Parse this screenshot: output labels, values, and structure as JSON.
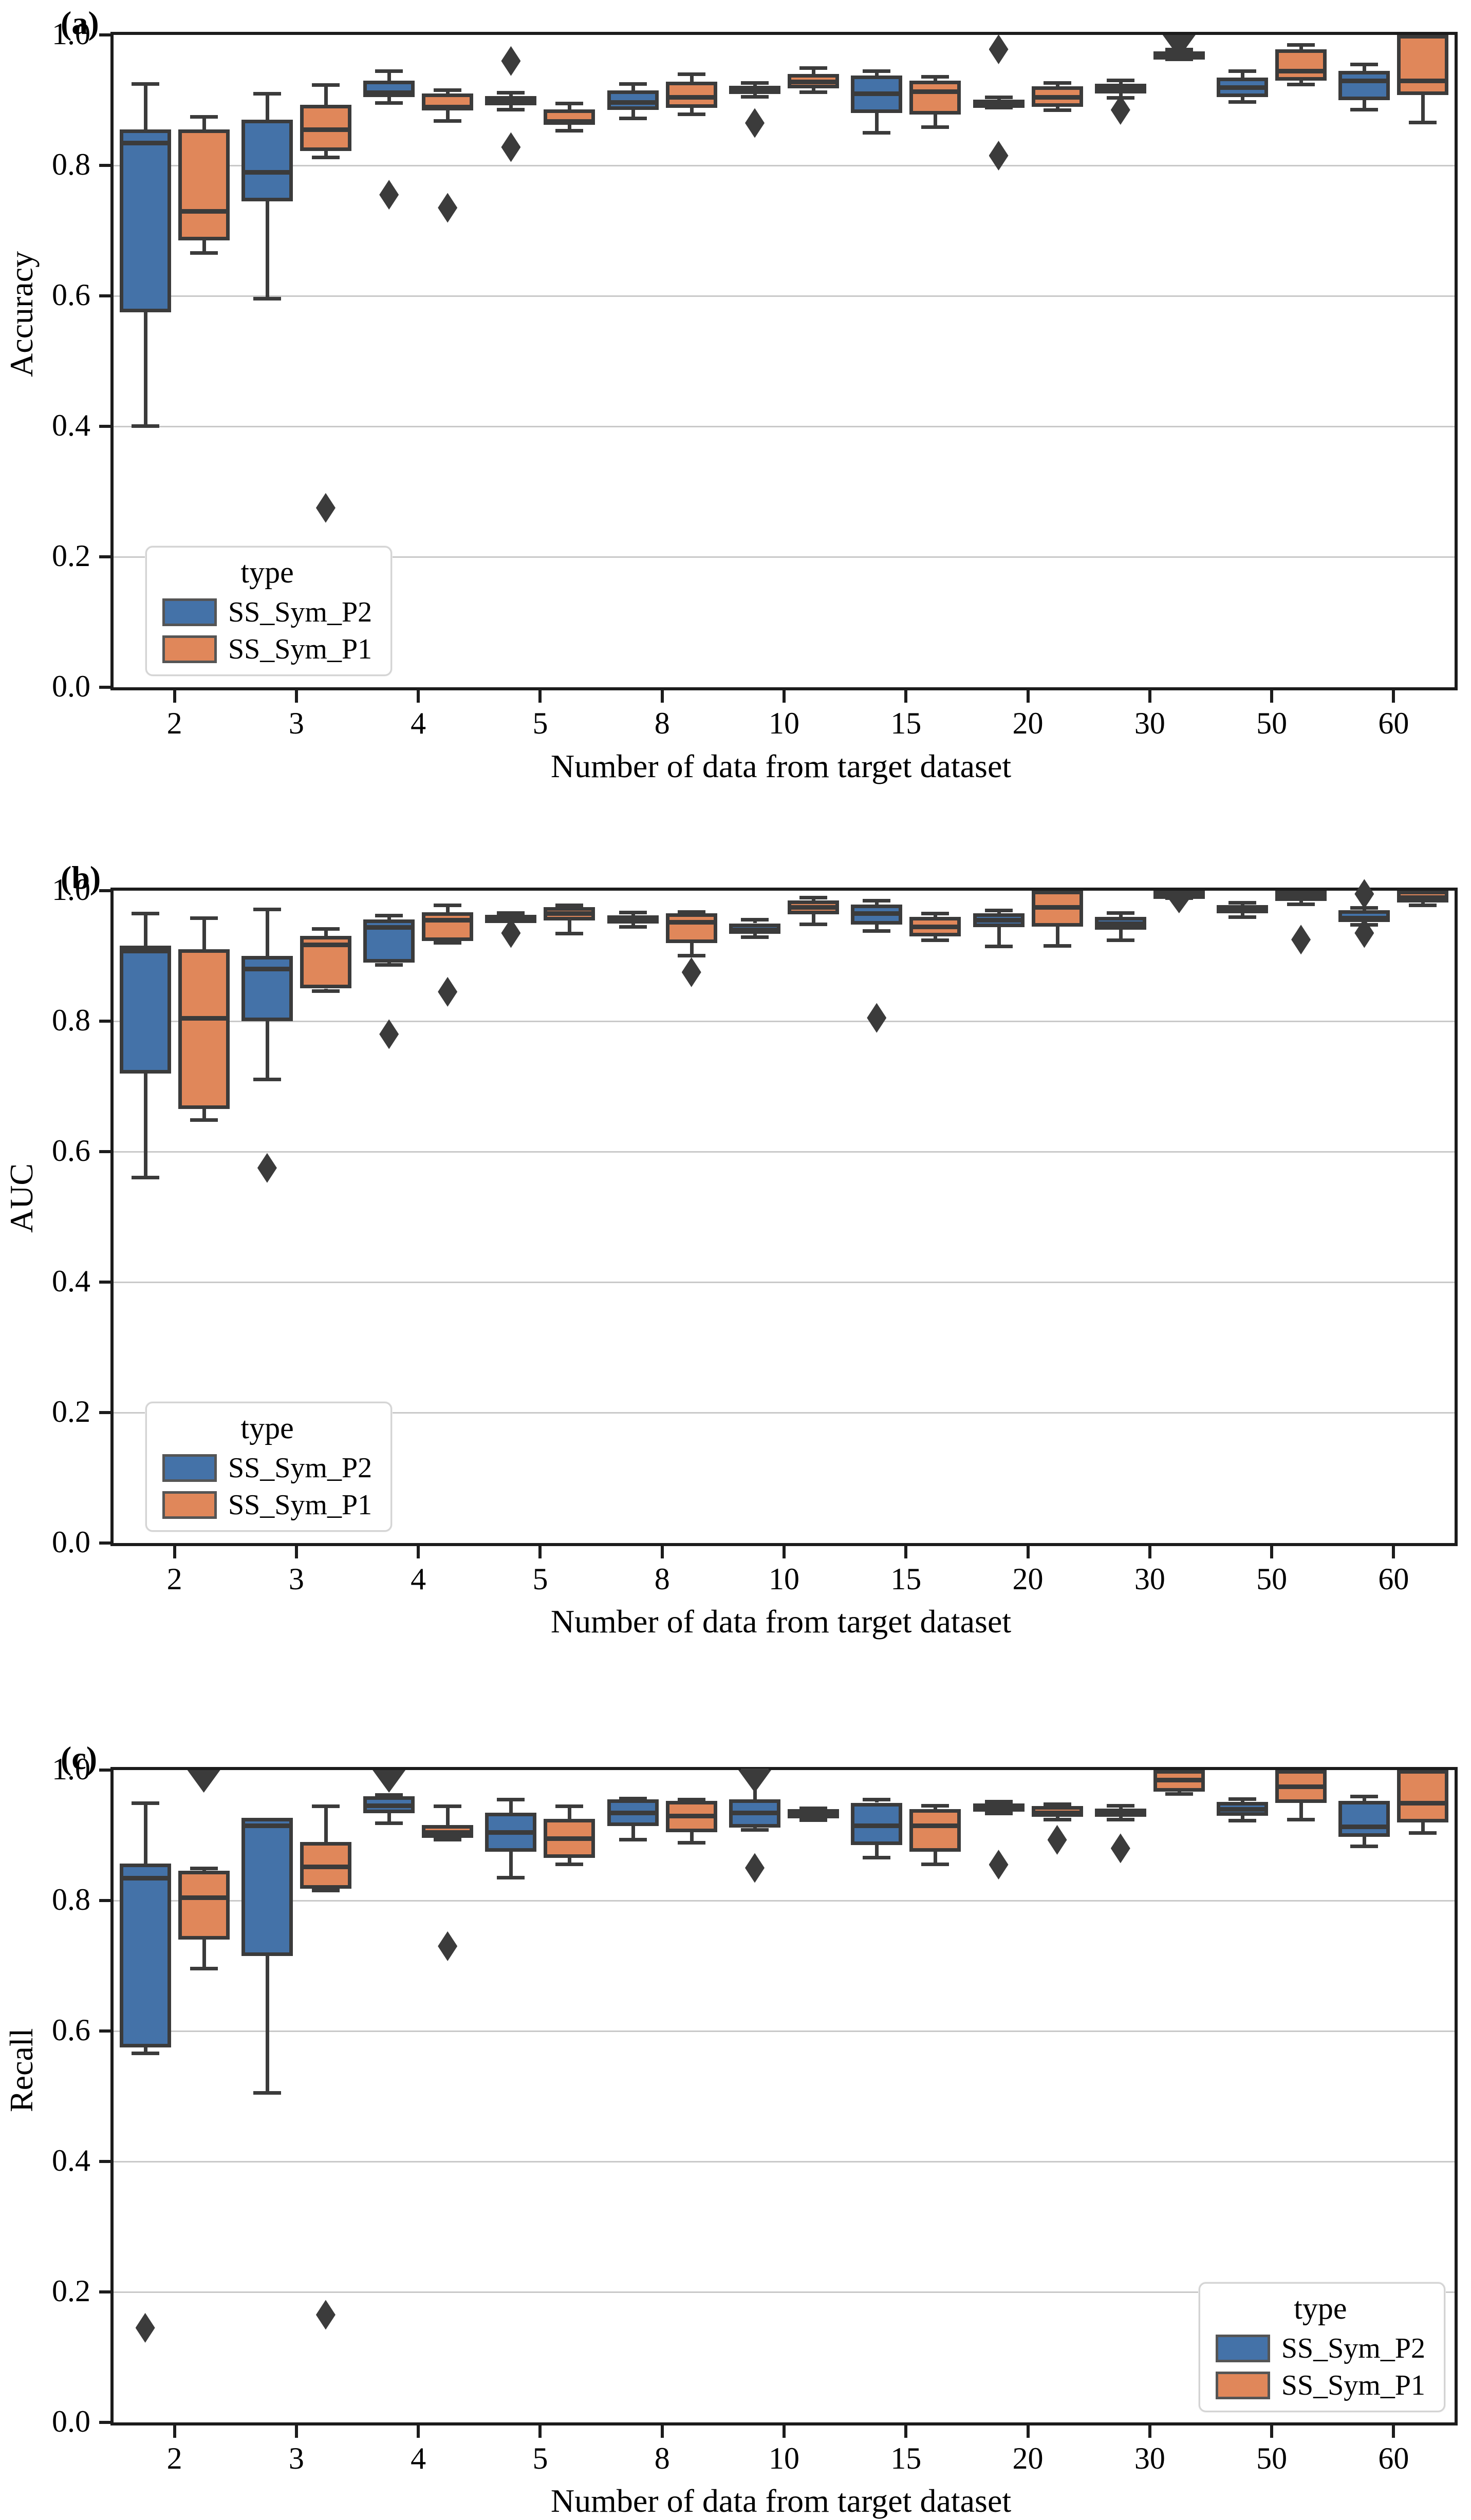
{
  "figure": {
    "xlabel": "Number of data from target dataset",
    "yticks": [
      "0.0",
      "0.2",
      "0.4",
      "0.6",
      "0.8",
      "1.0"
    ],
    "ytick_values": [
      0.0,
      0.2,
      0.4,
      0.6,
      0.8,
      1.0
    ],
    "gridline_values": [
      0.2,
      0.4,
      0.6,
      0.8
    ],
    "categories": [
      "2",
      "3",
      "4",
      "5",
      "8",
      "10",
      "15",
      "20",
      "30",
      "50",
      "60"
    ],
    "colors": {
      "blue": "#4472a8",
      "orange": "#e0875a",
      "edge": "#3b3b3b",
      "grid": "#c9c9c9",
      "spine": "#1c1c1c"
    },
    "legend": {
      "title": "type",
      "items": [
        {
          "label": "SS_Sym_P2",
          "color_key": "blue"
        },
        {
          "label": "SS_Sym_P1",
          "color_key": "orange"
        }
      ]
    }
  },
  "chart_data": [
    {
      "type": "box",
      "tag": "(a)",
      "ylabel": "Accuracy",
      "ylim": [
        0.0,
        1.0
      ],
      "legend_position": "lower-left",
      "categories": [
        "2",
        "3",
        "4",
        "5",
        "8",
        "10",
        "15",
        "20",
        "30",
        "50",
        "60"
      ],
      "series": [
        {
          "name": "SS_Sym_P2",
          "color_key": "blue",
          "boxes": [
            {
              "w": [
                0.4,
                0.575,
                0.835,
                0.855,
                0.925
              ]
            },
            {
              "w": [
                0.595,
                0.745,
                0.79,
                0.87,
                0.91
              ]
            },
            {
              "w": [
                0.895,
                0.905,
                0.912,
                0.93,
                0.945
              ],
              "f": [
                0.755
              ]
            },
            {
              "w": [
                0.885,
                0.892,
                0.899,
                0.906,
                0.912
              ],
              "f": [
                0.96,
                0.828
              ]
            },
            {
              "w": [
                0.872,
                0.885,
                0.897,
                0.915,
                0.925
              ]
            },
            {
              "w": [
                0.905,
                0.91,
                0.916,
                0.922,
                0.927
              ],
              "f": [
                0.865
              ]
            },
            {
              "w": [
                0.85,
                0.88,
                0.91,
                0.938,
                0.945
              ]
            },
            {
              "w": [
                0.888,
                0.892,
                0.896,
                0.901,
                0.905
              ],
              "f": [
                0.978,
                0.815
              ]
            },
            {
              "w": [
                0.903,
                0.91,
                0.917,
                0.925,
                0.931
              ],
              "f": [
                0.885
              ]
            },
            {
              "w": [
                0.897,
                0.905,
                0.92,
                0.935,
                0.945
              ]
            },
            {
              "w": [
                0.885,
                0.9,
                0.93,
                0.945,
                0.955
              ]
            }
          ]
        },
        {
          "name": "SS_Sym_P1",
          "color_key": "orange",
          "boxes": [
            {
              "w": [
                0.665,
                0.685,
                0.73,
                0.855,
                0.875
              ]
            },
            {
              "w": [
                0.812,
                0.822,
                0.855,
                0.893,
                0.924
              ],
              "f": [
                0.275
              ]
            },
            {
              "w": [
                0.868,
                0.884,
                0.89,
                0.91,
                0.916
              ],
              "f": [
                0.735
              ]
            },
            {
              "w": [
                0.853,
                0.862,
                0.868,
                0.886,
                0.895
              ]
            },
            {
              "w": [
                0.878,
                0.888,
                0.905,
                0.928,
                0.94
              ]
            },
            {
              "w": [
                0.912,
                0.918,
                0.928,
                0.94,
                0.95
              ]
            },
            {
              "w": [
                0.858,
                0.878,
                0.913,
                0.93,
                0.936
              ]
            },
            {
              "w": [
                0.884,
                0.89,
                0.905,
                0.921,
                0.927
              ]
            },
            {
              "w": [
                0.962,
                0.965,
                0.97,
                0.975,
                0.978
              ],
              "clip": true
            },
            {
              "w": [
                0.924,
                0.93,
                0.945,
                0.978,
                0.985
              ]
            },
            {
              "w": [
                0.865,
                0.908,
                0.93,
                1.0,
                1.0
              ]
            }
          ]
        }
      ]
    },
    {
      "type": "box",
      "tag": "(b)",
      "ylabel": "AUC",
      "ylim": [
        0.0,
        1.0
      ],
      "legend_position": "lower-left",
      "categories": [
        "2",
        "3",
        "4",
        "5",
        "8",
        "10",
        "15",
        "20",
        "30",
        "50",
        "60"
      ],
      "series": [
        {
          "name": "SS_Sym_P2",
          "color_key": "blue",
          "boxes": [
            {
              "w": [
                0.56,
                0.72,
                0.908,
                0.916,
                0.965
              ]
            },
            {
              "w": [
                0.71,
                0.8,
                0.88,
                0.9,
                0.972
              ],
              "f": [
                0.575
              ]
            },
            {
              "w": [
                0.886,
                0.89,
                0.944,
                0.956,
                0.962
              ],
              "f": [
                0.78
              ]
            },
            {
              "w": [
                0.953,
                0.956,
                0.96,
                0.963,
                0.966
              ],
              "f": [
                0.935
              ]
            },
            {
              "w": [
                0.944,
                0.95,
                0.956,
                0.962,
                0.967
              ]
            },
            {
              "w": [
                0.928,
                0.934,
                0.94,
                0.95,
                0.956
              ]
            },
            {
              "w": [
                0.938,
                0.948,
                0.965,
                0.979,
                0.985
              ],
              "f": [
                0.805
              ]
            },
            {
              "w": [
                0.914,
                0.944,
                0.955,
                0.965,
                0.97
              ]
            },
            {
              "w": [
                0.924,
                0.94,
                0.95,
                0.96,
                0.966
              ]
            },
            {
              "w": [
                0.959,
                0.965,
                0.972,
                0.978,
                0.982
              ]
            },
            {
              "w": [
                0.947,
                0.952,
                0.958,
                0.97,
                0.974
              ],
              "f": [
                0.995,
                0.935
              ]
            }
          ]
        },
        {
          "name": "SS_Sym_P1",
          "color_key": "orange",
          "boxes": [
            {
              "w": [
                0.648,
                0.665,
                0.805,
                0.91,
                0.958
              ]
            },
            {
              "w": [
                0.846,
                0.85,
                0.917,
                0.931,
                0.942
              ]
            },
            {
              "w": [
                0.92,
                0.923,
                0.955,
                0.967,
                0.978
              ],
              "f": [
                0.845
              ]
            },
            {
              "w": [
                0.934,
                0.954,
                0.965,
                0.975,
                0.978
              ]
            },
            {
              "w": [
                0.9,
                0.92,
                0.952,
                0.965,
                0.968
              ],
              "f": [
                0.875
              ]
            },
            {
              "w": [
                0.948,
                0.964,
                0.975,
                0.985,
                0.99
              ]
            },
            {
              "w": [
                0.924,
                0.93,
                0.945,
                0.96,
                0.965
              ]
            },
            {
              "w": [
                0.915,
                0.945,
                0.975,
                1.0,
                1.0
              ]
            },
            {
              "w": [
                0.988,
                0.991,
                0.995,
                1.0,
                1.0
              ],
              "clip": true
            },
            {
              "w": [
                0.979,
                0.984,
                0.993,
                1.0,
                1.0
              ],
              "f": [
                0.925
              ]
            },
            {
              "w": [
                0.977,
                0.982,
                0.99,
                1.0,
                1.0
              ]
            }
          ]
        }
      ]
    },
    {
      "type": "box",
      "tag": "(c)",
      "ylabel": "Recall",
      "ylim": [
        0.0,
        1.0
      ],
      "legend_position": "lower-right",
      "categories": [
        "2",
        "3",
        "4",
        "5",
        "8",
        "10",
        "15",
        "20",
        "30",
        "50",
        "60"
      ],
      "series": [
        {
          "name": "SS_Sym_P2",
          "color_key": "blue",
          "boxes": [
            {
              "w": [
                0.565,
                0.575,
                0.835,
                0.857,
                0.95
              ],
              "f": [
                0.145
              ]
            },
            {
              "w": [
                0.505,
                0.715,
                0.915,
                0.927,
                0.927
              ]
            },
            {
              "w": [
                0.918,
                0.934,
                0.946,
                0.96,
                0.962
              ],
              "clip": true
            },
            {
              "w": [
                0.835,
                0.875,
                0.905,
                0.935,
                0.955
              ]
            },
            {
              "w": [
                0.893,
                0.914,
                0.935,
                0.955,
                0.957
              ]
            },
            {
              "w": [
                0.908,
                0.912,
                0.935,
                0.955,
                1.0
              ],
              "clip": true,
              "f": [
                0.85
              ]
            },
            {
              "w": [
                0.865,
                0.885,
                0.915,
                0.95,
                0.955
              ]
            },
            {
              "w": [
                0.933,
                0.938,
                0.944,
                0.949,
                0.952
              ],
              "f": [
                0.855
              ]
            },
            {
              "w": [
                0.924,
                0.93,
                0.936,
                0.941,
                0.946
              ],
              "f": [
                0.88
              ]
            },
            {
              "w": [
                0.922,
                0.93,
                0.94,
                0.951,
                0.956
              ]
            },
            {
              "w": [
                0.883,
                0.898,
                0.913,
                0.953,
                0.96
              ]
            }
          ]
        },
        {
          "name": "SS_Sym_P1",
          "color_key": "orange",
          "boxes": [
            {
              "w": [
                0.695,
                0.74,
                0.805,
                0.846,
                0.85
              ],
              "clip": true
            },
            {
              "w": [
                0.815,
                0.818,
                0.852,
                0.89,
                0.945
              ],
              "f": [
                0.165
              ]
            },
            {
              "w": [
                0.893,
                0.896,
                0.905,
                0.916,
                0.945
              ],
              "f": [
                0.73
              ]
            },
            {
              "w": [
                0.855,
                0.865,
                0.895,
                0.925,
                0.945
              ]
            },
            {
              "w": [
                0.888,
                0.905,
                0.93,
                0.953,
                0.955
              ]
            },
            {
              "w": [
                0.923,
                0.926,
                0.932,
                0.94,
                0.942
              ]
            },
            {
              "w": [
                0.855,
                0.875,
                0.915,
                0.94,
                0.946
              ]
            },
            {
              "w": [
                0.924,
                0.928,
                0.935,
                0.945,
                0.948
              ],
              "f": [
                0.893
              ]
            },
            {
              "w": [
                0.963,
                0.967,
                0.985,
                1.0,
                1.0
              ]
            },
            {
              "w": [
                0.924,
                0.95,
                0.975,
                1.0,
                1.0
              ]
            },
            {
              "w": [
                0.903,
                0.92,
                0.95,
                1.0,
                1.0
              ]
            }
          ]
        }
      ]
    }
  ]
}
